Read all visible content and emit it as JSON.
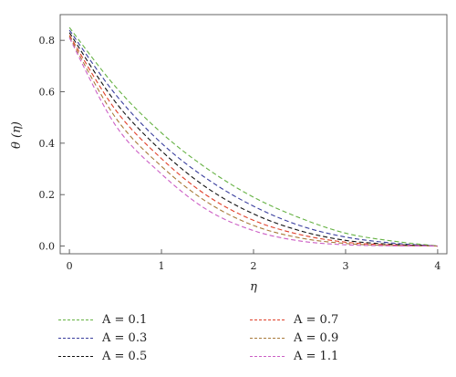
{
  "chart_data": {
    "type": "line",
    "title": "",
    "xlabel": "η",
    "ylabel": "θ (η)",
    "xlim": [
      -0.1,
      4.1
    ],
    "ylim": [
      -0.03,
      0.9
    ],
    "xticks": [
      "0",
      "1",
      "2",
      "3",
      "4"
    ],
    "yticks": [
      "0.0",
      "0.2",
      "0.4",
      "0.6",
      "0.8"
    ],
    "grid": false,
    "legend_position": "bottom",
    "x": [
      0,
      0.5,
      1,
      1.5,
      2,
      2.5,
      3,
      3.5,
      4
    ],
    "series": [
      {
        "name": "A = 0.1",
        "color": "#66b244",
        "values": [
          0.85,
          0.62,
          0.44,
          0.3,
          0.19,
          0.11,
          0.05,
          0.02,
          0.0
        ]
      },
      {
        "name": "A = 0.3",
        "color": "#3a3f9e",
        "values": [
          0.84,
          0.59,
          0.4,
          0.26,
          0.155,
          0.08,
          0.035,
          0.012,
          0.0
        ]
      },
      {
        "name": "A = 0.5",
        "color": "#111111",
        "values": [
          0.83,
          0.56,
          0.37,
          0.225,
          0.125,
          0.06,
          0.022,
          0.007,
          0.0
        ]
      },
      {
        "name": "A = 0.7",
        "color": "#e0402a",
        "values": [
          0.82,
          0.53,
          0.34,
          0.195,
          0.1,
          0.045,
          0.015,
          0.004,
          0.0
        ]
      },
      {
        "name": "A = 0.9",
        "color": "#a87a3a",
        "values": [
          0.815,
          0.5,
          0.31,
          0.17,
          0.08,
          0.032,
          0.01,
          0.002,
          0.0
        ]
      },
      {
        "name": "A = 1.1",
        "color": "#cc5fc5",
        "values": [
          0.81,
          0.47,
          0.28,
          0.14,
          0.06,
          0.02,
          0.005,
          0.001,
          0.0
        ]
      }
    ]
  }
}
